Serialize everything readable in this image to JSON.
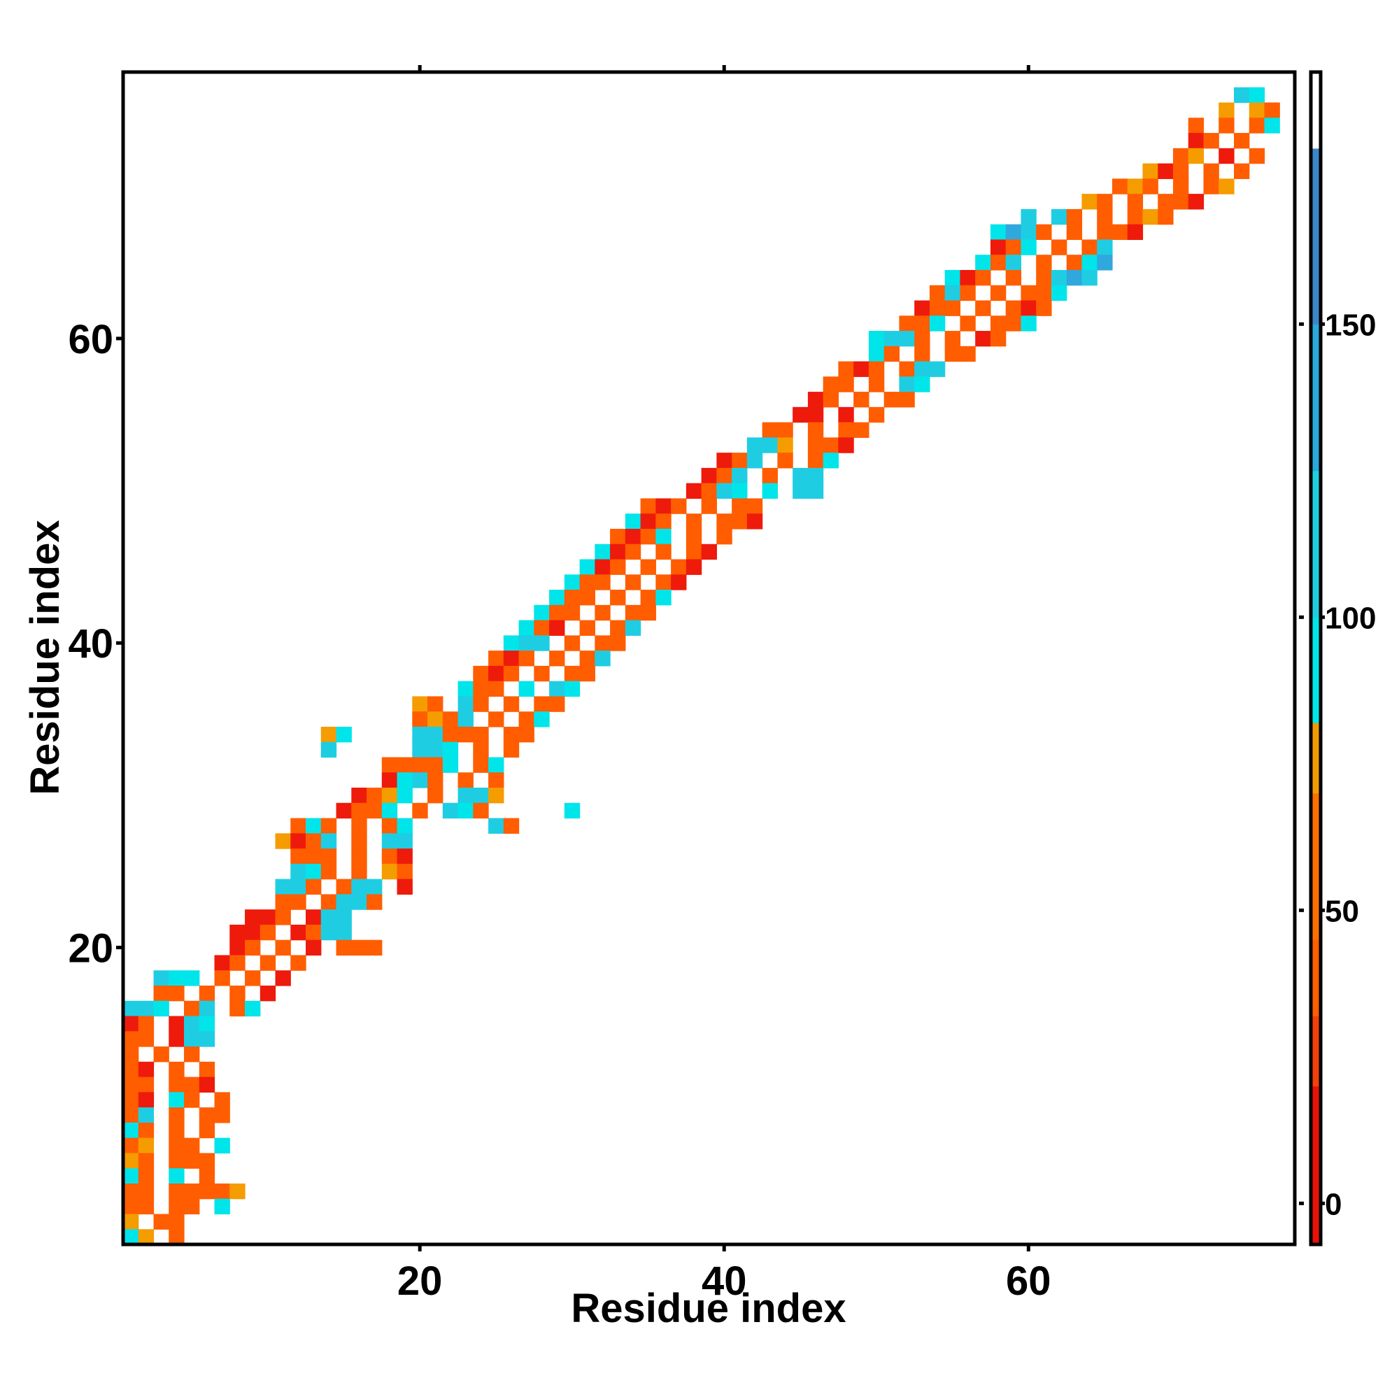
{
  "chart_data": {
    "type": "heatmap",
    "title": "",
    "xlabel": "Residue index",
    "ylabel": "Residue index",
    "xlim": [
      1,
      77
    ],
    "ylim": [
      1,
      77
    ],
    "xticks": [
      20,
      40,
      60
    ],
    "yticks": [
      20,
      40,
      60
    ],
    "top_ticks": [
      20,
      40,
      60
    ],
    "colorbar": {
      "range": [
        -7,
        193
      ],
      "ticks": [
        0,
        50,
        100,
        150
      ],
      "bands": [
        {
          "from": -7,
          "to": 20,
          "color": "#e8120b"
        },
        {
          "from": 20,
          "to": 32,
          "color": "#f2410a"
        },
        {
          "from": 32,
          "to": 45,
          "color": "#ff5f00"
        },
        {
          "from": 45,
          "to": 70,
          "color": "#ff6f00"
        },
        {
          "from": 70,
          "to": 82,
          "color": "#f29b00"
        },
        {
          "from": 82,
          "to": 100,
          "color": "#00e7e7"
        },
        {
          "from": 100,
          "to": 125,
          "color": "#1fcfe0"
        },
        {
          "from": 125,
          "to": 150,
          "color": "#2aa9dc"
        },
        {
          "from": 150,
          "to": 180,
          "color": "#3d86c8"
        },
        {
          "from": 180,
          "to": 193,
          "color": "#ffffff"
        }
      ]
    },
    "cell_colors": {
      "r": "#ee1a0b",
      "o": "#ff5d00",
      "y": "#f59c00",
      "c": "#00e5ea",
      "k": "#1fcde3",
      "b": "#2fa8dd"
    },
    "grid": false,
    "legend": "colorbar-right",
    "cell_rows": [
      {
        "y": 76,
        "row": ".........................................................................kc."
      },
      {
        "y": 75,
        "row": "........................................................................y.yo"
      },
      {
        "y": 74,
        "row": "......................................................................o.o.oc"
      },
      {
        "y": 73,
        "row": "......................................................................ro.o.."
      },
      {
        "y": 72,
        "row": ".....................................................................oy.r.o."
      },
      {
        "y": 71,
        "row": "...................................................................yro.o.o.."
      },
      {
        "y": 70,
        "row": ".................................................................oyo.o.oy..."
      },
      {
        "y": 69,
        "row": "...............................................................yo.o.oor...."
      },
      {
        "y": 68,
        "row": "...........................................................k.ko.o.oyo....."
      },
      {
        "y": 67,
        "row": ".........................................................cbko.o.oor......"
      },
      {
        "y": 66,
        "row": ".........................................................roc.o.ok........"
      },
      {
        "y": 65,
        "row": "........................................................cok.o.ocb........."
      },
      {
        "y": 64,
        "row": "......................................................cro.o.okbk.........."
      },
      {
        "y": 63,
        "row": ".....................................................oko.o.ooc............"
      },
      {
        "y": 62,
        "row": "....................................................roo.o.oro............."
      },
      {
        "y": 61,
        "row": "...................................................ooc.o.ooc.............."
      },
      {
        "y": 60,
        "row": ".................................................ckko.o.ro................"
      },
      {
        "y": 59,
        "row": ".................................................co.o.oo................."
      },
      {
        "y": 58,
        "row": "...............................................oro.okk.................."
      },
      {
        "y": 57,
        "row": "..............................................oo.o.kc..................."
      },
      {
        "y": 56,
        "row": ".............................................ro.o.oo...................."
      },
      {
        "y": 55,
        "row": "............................................rr.r.o....................."
      },
      {
        "y": 54,
        "row": "..........................................oo.o.oo......................"
      },
      {
        "y": 53,
        "row": ".........................................kky.oor......................."
      },
      {
        "y": 52,
        "row": ".......................................rok.o.oc........................"
      },
      {
        "y": 51,
        "row": "......................................rok.o.kk........................."
      },
      {
        "y": 50,
        "row": ".....................................rokc.c.kk........................."
      },
      {
        "y": 49,
        "row": "..................................oro.o.oo............................"
      },
      {
        "y": 48,
        "row": ".................................cro.o.oor.............................."
      },
      {
        "y": 47,
        "row": "................................oroc.o.o..............................."
      },
      {
        "y": 46,
        "row": "...............................cro.o.or................................"
      },
      {
        "y": 45,
        "row": "..............................cro.o.or................................."
      },
      {
        "y": 44,
        "row": ".............................coo.o.or.................................."
      },
      {
        "y": 43,
        "row": "............................coo.o.oc..................................."
      },
      {
        "y": 42,
        "row": "...........................coo.o.oo...................................."
      },
      {
        "y": 41,
        "row": "..........................cor.o.ok....................................."
      },
      {
        "y": 40,
        "row": ".........................ckk.o.oo......................................"
      },
      {
        "y": 39,
        "row": "........................oro.o.ok......................................."
      },
      {
        "y": 38,
        "row": ".......................oro.o.oo........................................"
      },
      {
        "y": 37,
        "row": "......................coo.c.kc........................................."
      },
      {
        "y": 36,
        "row": "...................yo.ko.o.oo.........................................."
      },
      {
        "y": 35,
        "row": "...................oyok.o.oc..........................................."
      },
      {
        "y": 34,
        "row": ".............yc....kkooo.oo............................................"
      },
      {
        "y": 33,
        "row": ".............k.....kkc.o.o............................................."
      },
      {
        "y": 32,
        "row": ".................ooooc.oc.............................................."
      },
      {
        "y": 31,
        "row": ".................rcko.o.o.............................................."
      },
      {
        "y": 30,
        "row": "...............royc.o.kky.............................................."
      },
      {
        "y": 29,
        "row": "..............rooc.o.kco.....c.........................................."
      },
      {
        "y": 28,
        "row": "...........oco.o.oc.....ko.............................................."
      },
      {
        "y": 27,
        "row": "..........yrok.o.kk......................................................"
      },
      {
        "y": 26,
        "row": "...........ooo.o.or......................................................"
      },
      {
        "y": 25,
        "row": "...........kco.o.yo......................................................"
      },
      {
        "y": 24,
        "row": "..........kko.okk.r......................................................"
      },
      {
        "y": 23,
        "row": "..........oo.okko........................................................"
      },
      {
        "y": 22,
        "row": "........rro.rkk.........................................................."
      },
      {
        "y": 21,
        "row": ".......rro.rokk.........................................................."
      },
      {
        "y": 20,
        "row": ".......ro.o.r.ooo........................................................"
      },
      {
        "y": 19,
        "row": "......ro.o.o............................................................."
      },
      {
        "y": 18,
        "row": "..kcc.o.o.r..............................................................."
      },
      {
        "y": 17,
        "row": "..oo.o.o.r..............................................................."
      },
      {
        "y": 16,
        "row": "kkc.ok.oc................................................................"
      },
      {
        "y": 15,
        "row": "ro.rkc..................................................................."
      },
      {
        "y": 14,
        "row": "oo.rkk..................................................................."
      },
      {
        "y": 13,
        "row": "o.o.o...................................................................."
      },
      {
        "y": 12,
        "row": "or.o.o..................................................................."
      },
      {
        "y": 11,
        "row": "oo.oor..................................................................."
      },
      {
        "y": 10,
        "row": "or.co.ox................................................................."
      },
      {
        "y": 9,
        "row": "ok.o.oo.................................................................."
      },
      {
        "y": 8,
        "row": "co.o.o...................................................................."
      },
      {
        "y": 7,
        "row": "oy.oo.c..................................................................."
      },
      {
        "y": 6,
        "row": "yo.ooo...................................................................."
      },
      {
        "y": 5,
        "row": "co.c.o..................................................................."
      },
      {
        "y": 4,
        "row": "oo.ooooy..................................................................."
      },
      {
        "y": 3,
        "row": "oo.oo.c..................................................................."
      },
      {
        "y": 2,
        "row": "y.oo......................................................................"
      },
      {
        "y": 1,
        "row": "cy.o......................................................................"
      }
    ]
  }
}
